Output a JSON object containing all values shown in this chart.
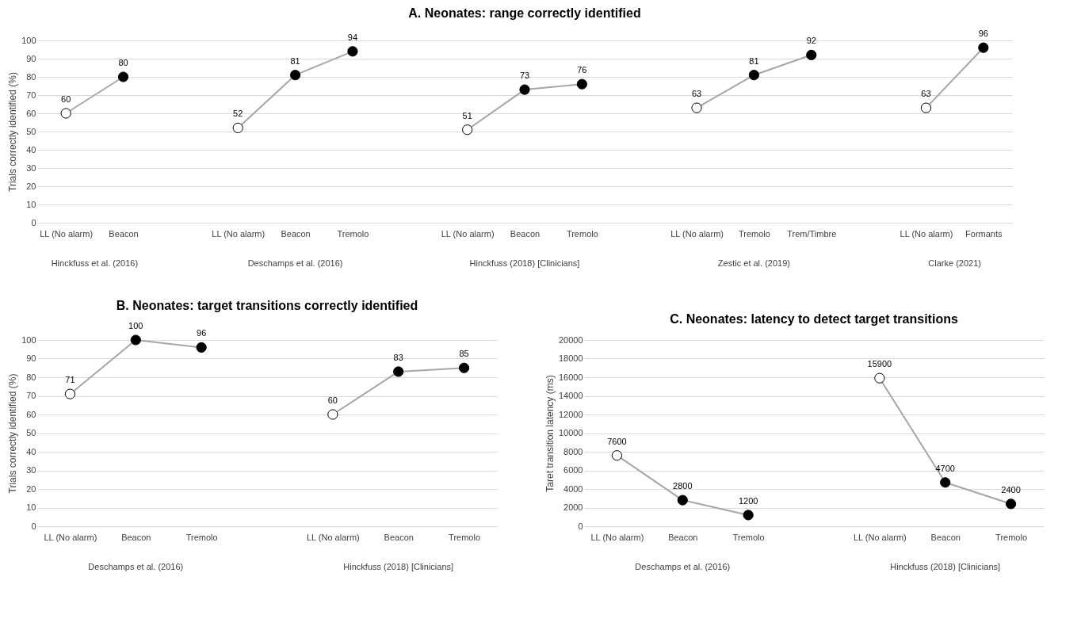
{
  "chart_data": [
    {
      "type": "line",
      "title": "A. Neonates: range correctly identified",
      "ylabel": "Trials correctly identified (%)",
      "categories": [
        "LL (No alarm)",
        "Beacon",
        null,
        "LL (No alarm)",
        "Beacon",
        "Tremolo",
        null,
        "LL (No alarm)",
        "Beacon",
        "Tremolo",
        null,
        "LL (No alarm)",
        "Tremolo",
        "Trem/Timbre",
        null,
        "LL (No alarm)",
        "Formants"
      ],
      "series": [
        {
          "color": "#a6a6a6",
          "values": [
            60,
            80,
            null,
            null,
            null,
            null,
            null,
            null,
            null,
            null,
            null,
            null,
            null,
            null,
            null,
            null,
            null
          ],
          "colors": [
            "#ffffff",
            "#000000",
            null,
            null,
            null,
            null,
            null,
            null,
            null,
            null,
            null,
            null,
            null,
            null,
            null,
            null,
            null
          ]
        },
        {
          "color": "#a6a6a6",
          "values": [
            null,
            null,
            null,
            52,
            81,
            94,
            null,
            null,
            null,
            null,
            null,
            null,
            null,
            null,
            null,
            null,
            null
          ],
          "colors": [
            null,
            null,
            null,
            "#ffffff",
            "#000000",
            "#000000",
            null,
            null,
            null,
            null,
            null,
            null,
            null,
            null,
            null,
            null,
            null
          ]
        },
        {
          "color": "#a6a6a6",
          "values": [
            null,
            null,
            null,
            null,
            null,
            null,
            null,
            51,
            73,
            76,
            null,
            null,
            null,
            null,
            null,
            null,
            null
          ],
          "colors": [
            null,
            null,
            null,
            null,
            null,
            null,
            null,
            "#ffffff",
            "#000000",
            "#000000",
            null,
            null,
            null,
            null,
            null,
            null,
            null
          ]
        },
        {
          "color": "#a6a6a6",
          "values": [
            null,
            null,
            null,
            null,
            null,
            null,
            null,
            null,
            null,
            null,
            null,
            63,
            81,
            92,
            null,
            null,
            null
          ],
          "colors": [
            null,
            null,
            null,
            null,
            null,
            null,
            null,
            null,
            null,
            null,
            null,
            "#ffffff",
            "#000000",
            "#000000",
            null,
            null,
            null
          ]
        },
        {
          "color": "#a6a6a6",
          "values": [
            null,
            null,
            null,
            null,
            null,
            null,
            null,
            null,
            null,
            null,
            null,
            null,
            null,
            null,
            null,
            63,
            96
          ],
          "colors": [
            null,
            null,
            null,
            null,
            null,
            null,
            null,
            null,
            null,
            null,
            null,
            null,
            null,
            null,
            null,
            "#ffffff",
            "#000000"
          ]
        }
      ],
      "annotations": [
        "Hinckfuss et al. (2016)",
        "Deschamps et al. (2016)",
        "Hinckfuss (2018) [Clinicians]",
        "Zestic et al. (2019)",
        "Clarke (2021)"
      ],
      "ylim": [
        0,
        100
      ],
      "yticks": [
        0,
        10,
        20,
        30,
        40,
        50,
        60,
        70,
        80,
        90,
        100
      ],
      "grid": "y",
      "marker": "circle",
      "data_labels": true
    },
    {
      "type": "line",
      "title": "B. Neonates: target transitions correctly identified",
      "ylabel": "Trials correctly identified (%)",
      "categories": [
        "LL (No alarm)",
        "Beacon",
        "Tremolo",
        null,
        "LL (No alarm)",
        "Beacon",
        "Tremolo"
      ],
      "series": [
        {
          "color": "#a6a6a6",
          "values": [
            71,
            100,
            96,
            null,
            null,
            null,
            null
          ],
          "colors": [
            "#ffffff",
            "#000000",
            "#000000",
            null,
            null,
            null,
            null
          ]
        },
        {
          "color": "#a6a6a6",
          "values": [
            null,
            null,
            null,
            null,
            60,
            83,
            85
          ],
          "colors": [
            null,
            null,
            null,
            null,
            "#ffffff",
            "#000000",
            "#000000"
          ]
        }
      ],
      "annotations": [
        "Deschamps et al. (2016)",
        "Hinckfuss (2018) [Clinicians]"
      ],
      "ylim": [
        0,
        100
      ],
      "yticks": [
        0,
        10,
        20,
        30,
        40,
        50,
        60,
        70,
        80,
        90,
        100
      ],
      "grid": "y",
      "marker": "circle",
      "data_labels": true
    },
    {
      "type": "line",
      "title": "C. Neonates: latency to detect target transitions",
      "ylabel": "Taret transition latency (ms)",
      "categories": [
        "LL (No alarm)",
        "Beacon",
        "Tremolo",
        null,
        "LL (No alarm)",
        "Beacon",
        "Tremolo"
      ],
      "series": [
        {
          "color": "#a6a6a6",
          "values": [
            7600,
            2800,
            1200,
            null,
            null,
            null,
            null
          ],
          "colors": [
            "#ffffff",
            "#000000",
            "#000000",
            null,
            null,
            null,
            null
          ]
        },
        {
          "color": "#a6a6a6",
          "values": [
            null,
            null,
            null,
            null,
            15900,
            4700,
            2400
          ],
          "colors": [
            null,
            null,
            null,
            null,
            "#ffffff",
            "#000000",
            "#000000"
          ]
        }
      ],
      "annotations": [
        "Deschamps et al. (2016)",
        "Hinckfuss (2018) [Clinicians]"
      ],
      "ylim": [
        0,
        20000
      ],
      "yticks": [
        0,
        2000,
        4000,
        6000,
        8000,
        10000,
        12000,
        14000,
        16000,
        18000,
        20000
      ],
      "grid": "y",
      "marker": "circle",
      "data_labels": true
    }
  ]
}
